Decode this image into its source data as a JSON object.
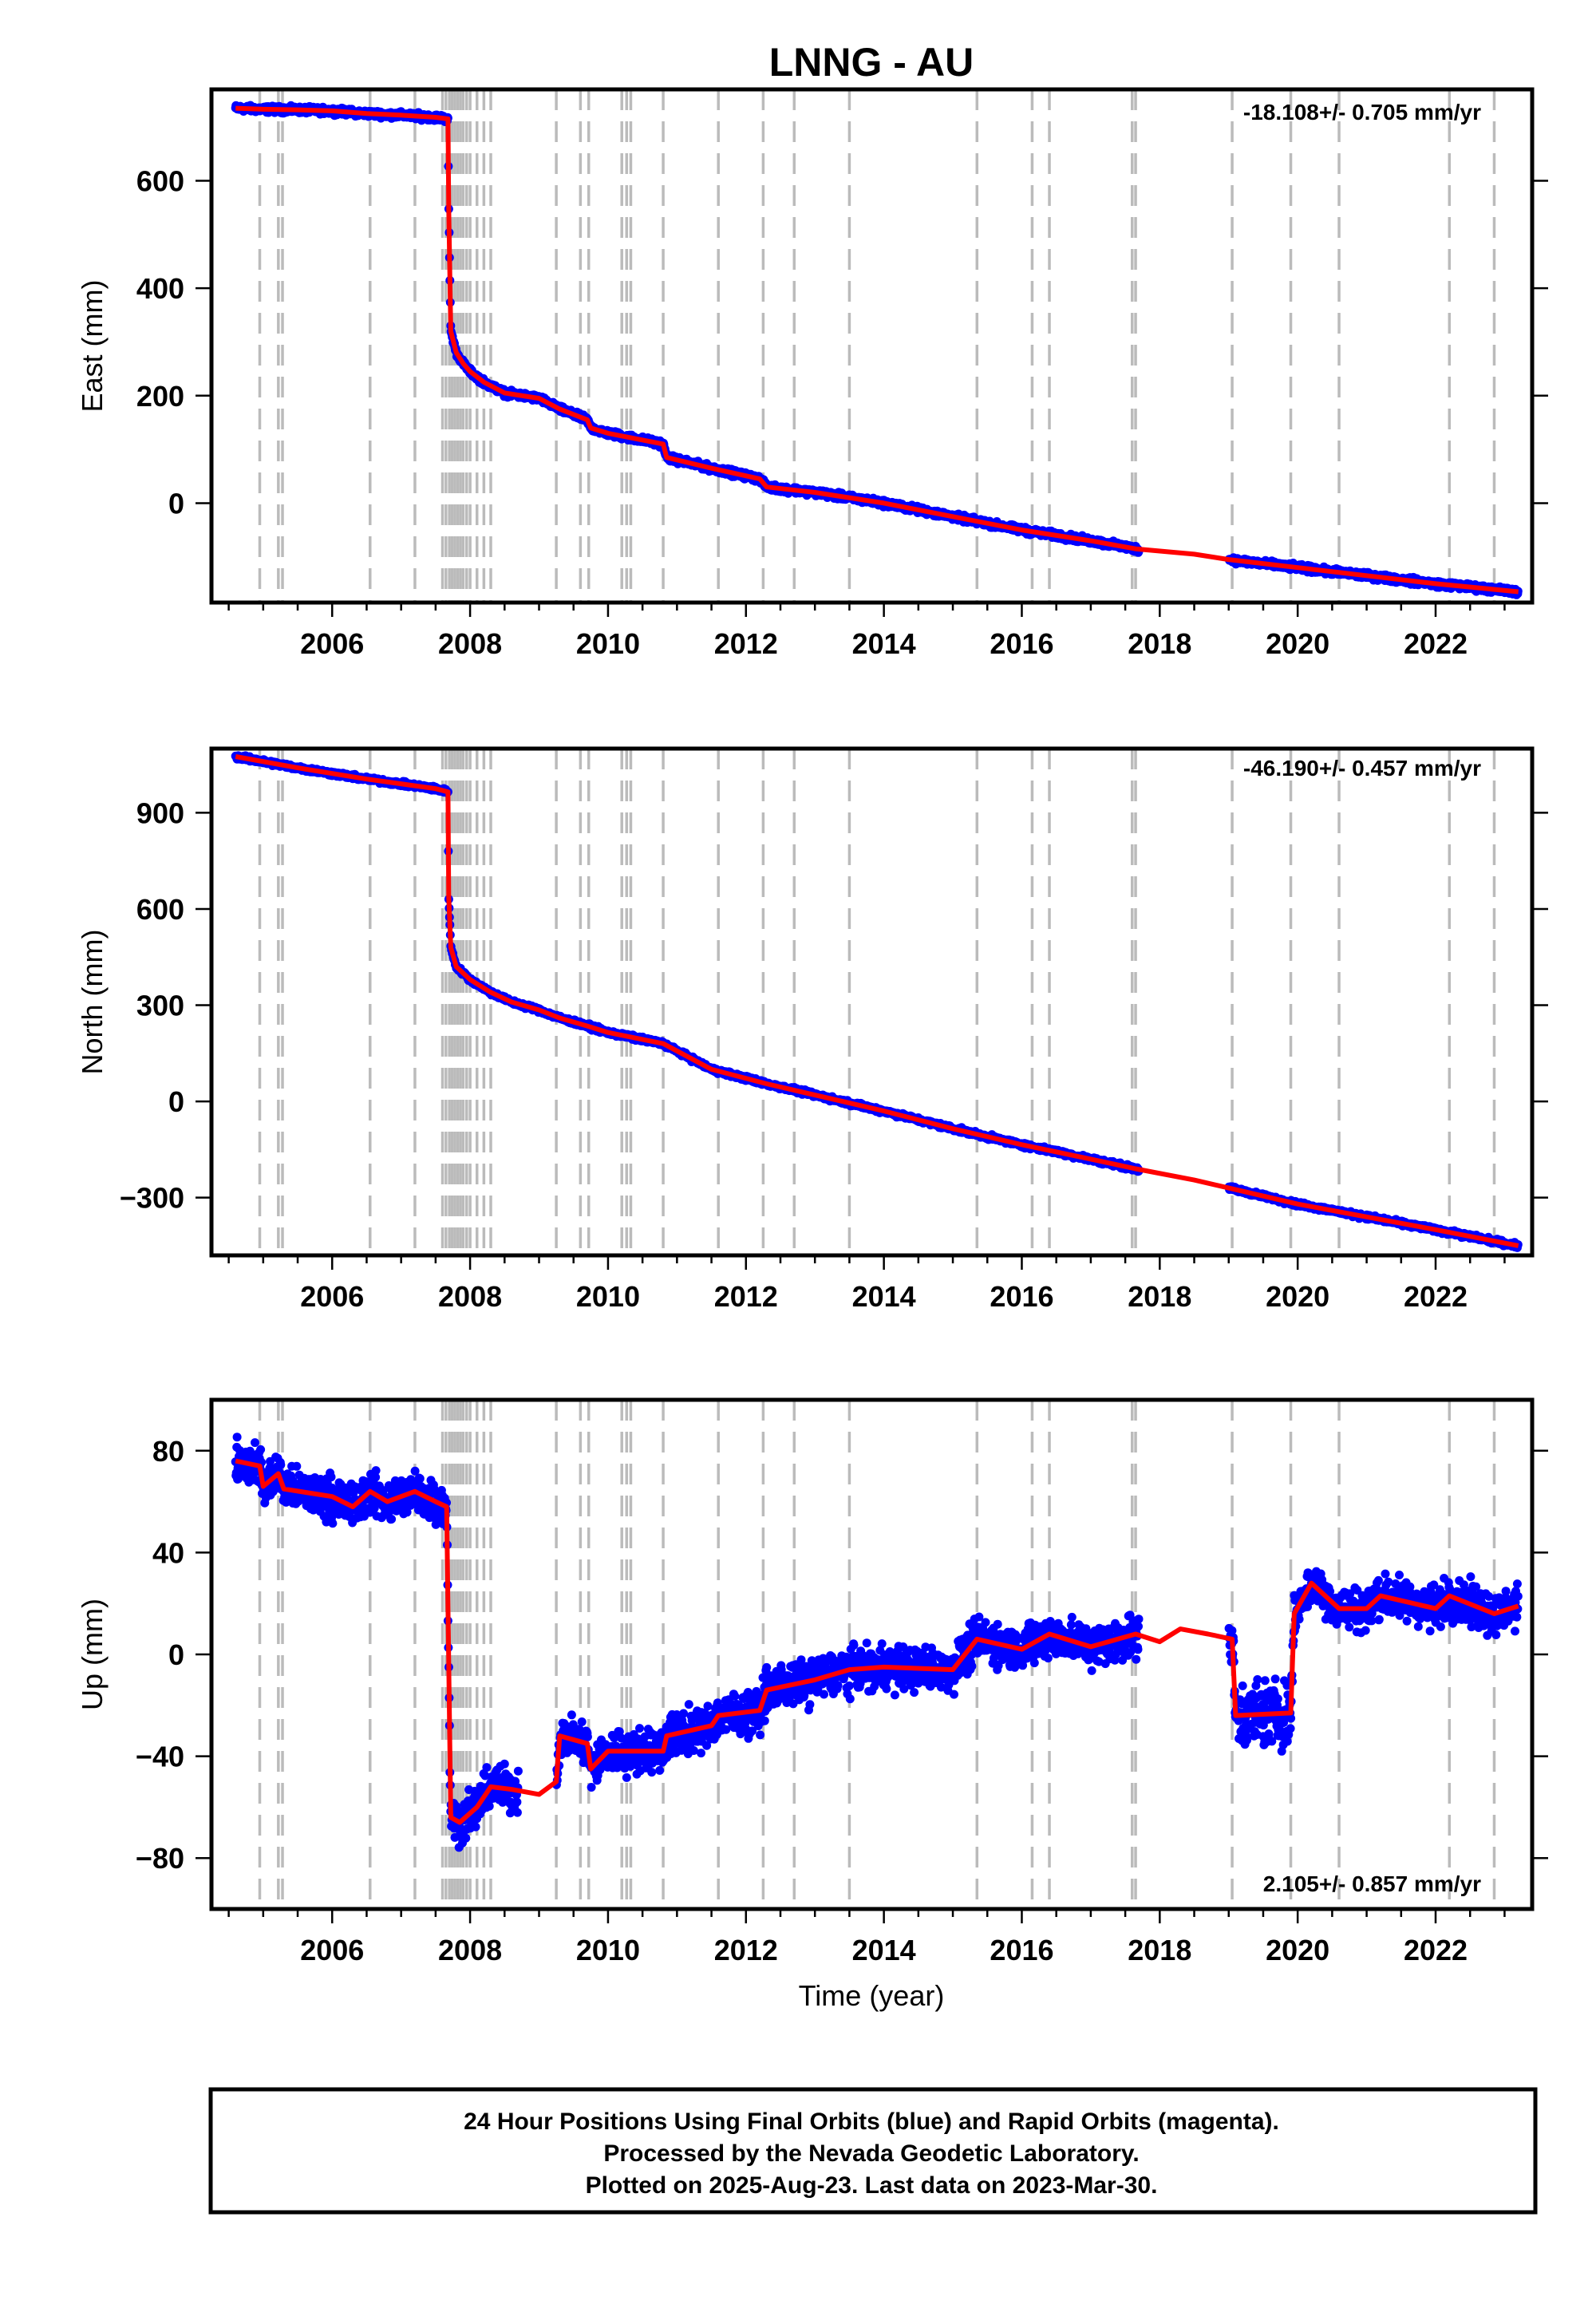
{
  "title": "LNNG - AU",
  "x_label": "Time (year)",
  "x_ticks": [
    2006,
    2008,
    2010,
    2012,
    2014,
    2016,
    2018,
    2020,
    2022
  ],
  "footer": {
    "line1": "24 Hour Positions Using Final Orbits (blue) and Rapid Orbits (magenta).",
    "line2": "Processed by the Nevada Geodetic Laboratory.",
    "line3": "Plotted on 2025-Aug-23. Last data on 2023-Mar-30."
  },
  "colors": {
    "data": "#0000ff",
    "model": "#ff0000",
    "events": "#bbbbbb",
    "frame": "#000000"
  },
  "chart_data": [
    {
      "type": "scatter",
      "title": "",
      "ylabel": "East (mm)",
      "rate_label": "-18.108+/- 0.705 mm/yr",
      "xlim": [
        2004.25,
        2023.4
      ],
      "ylim": [
        -185,
        770
      ],
      "y_ticks": [
        0,
        200,
        400,
        600
      ],
      "y_tick_labels": [
        "0",
        "200",
        "400",
        "600"
      ],
      "grid": false,
      "event_lines": [
        2004.95,
        2005.22,
        2005.28,
        2006.55,
        2007.2,
        2007.6,
        2007.65,
        2007.7,
        2007.74,
        2007.78,
        2007.82,
        2007.86,
        2007.9,
        2007.95,
        2008.0,
        2008.1,
        2008.2,
        2008.3,
        2009.25,
        2009.6,
        2009.72,
        2010.2,
        2010.27,
        2010.33,
        2010.8,
        2011.6,
        2012.25,
        2012.7,
        2013.5,
        2015.35,
        2016.15,
        2016.4,
        2017.6,
        2017.65,
        2019.05,
        2019.9,
        2020.6,
        2022.2,
        2022.85
      ],
      "gaps": [
        [
          2017.7,
          2019.0
        ]
      ],
      "series": [
        {
          "name": "position",
          "x": [
            2004.6,
            2005.0,
            2005.5,
            2006.0,
            2006.5,
            2007.0,
            2007.5,
            2007.68,
            2007.69,
            2007.72,
            2007.8,
            2007.9,
            2008.0,
            2008.2,
            2008.5,
            2009.0,
            2009.3,
            2009.7,
            2009.75,
            2010.0,
            2010.8,
            2010.85,
            2011.5,
            2012.2,
            2012.3,
            2013.0,
            2014.0,
            2015.0,
            2016.0,
            2017.0,
            2017.65,
            2018.5,
            2019.0,
            2020.0,
            2021.0,
            2022.0,
            2023.2
          ],
          "values": [
            735,
            733,
            732,
            730,
            725,
            722,
            718,
            715,
            550,
            320,
            280,
            260,
            245,
            225,
            205,
            195,
            175,
            155,
            140,
            130,
            110,
            85,
            65,
            45,
            30,
            20,
            0,
            -25,
            -50,
            -70,
            -85,
            -95,
            -105,
            -120,
            -135,
            -150,
            -165
          ],
          "noise": 5
        }
      ]
    },
    {
      "type": "scatter",
      "title": "",
      "ylabel": "North (mm)",
      "rate_label": "-46.190+/- 0.457 mm/yr",
      "xlim": [
        2004.25,
        2023.4
      ],
      "ylim": [
        -480,
        1100
      ],
      "y_ticks": [
        -300,
        0,
        300,
        600,
        900
      ],
      "y_tick_labels": [
        "−300",
        "0",
        "300",
        "600",
        "900"
      ],
      "grid": false,
      "event_lines": [
        2004.95,
        2005.22,
        2005.28,
        2006.55,
        2007.2,
        2007.6,
        2007.65,
        2007.7,
        2007.74,
        2007.78,
        2007.82,
        2007.86,
        2007.9,
        2007.95,
        2008.0,
        2008.1,
        2008.2,
        2008.3,
        2009.25,
        2009.6,
        2009.72,
        2010.2,
        2010.27,
        2010.33,
        2010.8,
        2011.6,
        2012.25,
        2012.7,
        2013.5,
        2015.35,
        2016.15,
        2016.4,
        2017.6,
        2017.65,
        2019.05,
        2019.9,
        2020.6,
        2022.2,
        2022.85
      ],
      "gaps": [
        [
          2017.7,
          2019.0
        ]
      ],
      "series": [
        {
          "name": "position",
          "x": [
            2004.6,
            2005.5,
            2006.5,
            2007.5,
            2007.68,
            2007.69,
            2007.72,
            2007.8,
            2008.0,
            2008.3,
            2008.6,
            2009.0,
            2009.3,
            2009.7,
            2010.0,
            2010.8,
            2011.5,
            2012.3,
            2013.0,
            2014.0,
            2015.0,
            2016.0,
            2017.0,
            2017.65,
            2018.5,
            2019.0,
            2020.0,
            2021.0,
            2022.0,
            2023.2
          ],
          "values": [
            1075,
            1040,
            1005,
            975,
            965,
            640,
            480,
            420,
            380,
            340,
            310,
            285,
            260,
            235,
            215,
            180,
            100,
            55,
            20,
            -30,
            -85,
            -135,
            -180,
            -210,
            -245,
            -270,
            -320,
            -360,
            -400,
            -450
          ],
          "noise": 6
        }
      ]
    },
    {
      "type": "scatter",
      "title": "",
      "ylabel": "Up (mm)",
      "rate_label": "2.105+/- 0.857 mm/yr",
      "xlim": [
        2004.25,
        2023.4
      ],
      "ylim": [
        -100,
        100
      ],
      "y_ticks": [
        -80,
        -40,
        0,
        40,
        80
      ],
      "y_tick_labels": [
        "−80",
        "−40",
        "0",
        "40",
        "80"
      ],
      "grid": false,
      "event_lines": [
        2004.95,
        2005.22,
        2005.28,
        2006.55,
        2007.2,
        2007.6,
        2007.65,
        2007.7,
        2007.74,
        2007.78,
        2007.82,
        2007.86,
        2007.9,
        2007.95,
        2008.0,
        2008.1,
        2008.2,
        2008.3,
        2009.25,
        2009.6,
        2009.72,
        2010.2,
        2010.27,
        2010.33,
        2010.8,
        2011.6,
        2012.25,
        2012.7,
        2013.5,
        2015.35,
        2016.15,
        2016.4,
        2017.6,
        2017.65,
        2019.05,
        2019.9,
        2020.6,
        2022.2,
        2022.85
      ],
      "gaps": [
        [
          2008.7,
          2009.25
        ],
        [
          2017.7,
          2019.0
        ],
        [
          2019.05,
          2019.05
        ]
      ],
      "series": [
        {
          "name": "position",
          "x": [
            2004.6,
            2004.95,
            2005.0,
            2005.22,
            2005.3,
            2006.0,
            2006.3,
            2006.55,
            2006.8,
            2007.2,
            2007.5,
            2007.66,
            2007.72,
            2007.85,
            2008.1,
            2008.3,
            2008.6,
            2009.0,
            2009.25,
            2009.3,
            2009.7,
            2009.75,
            2010.0,
            2010.8,
            2010.85,
            2011.5,
            2011.6,
            2012.2,
            2012.3,
            2013.0,
            2013.5,
            2014.0,
            2015.0,
            2015.35,
            2016.0,
            2016.4,
            2017.0,
            2017.65,
            2018.0,
            2018.3,
            2018.7,
            2019.05,
            2019.1,
            2019.9,
            2019.95,
            2020.2,
            2020.6,
            2021.0,
            2021.2,
            2022.0,
            2022.2,
            2022.85,
            2023.2
          ],
          "values": [
            76,
            74,
            66,
            71,
            65,
            62,
            58,
            64,
            60,
            64,
            60,
            58,
            -64,
            -66,
            -60,
            -52,
            -53,
            -55,
            -50,
            -32,
            -35,
            -45,
            -38,
            -38,
            -32,
            -28,
            -24,
            -22,
            -14,
            -10,
            -6,
            -5,
            -6,
            6,
            2,
            8,
            3,
            8,
            5,
            10,
            8,
            6,
            -24,
            -23,
            16,
            28,
            18,
            18,
            23,
            18,
            23,
            16,
            19
          ],
          "noise": 7
        }
      ]
    }
  ]
}
